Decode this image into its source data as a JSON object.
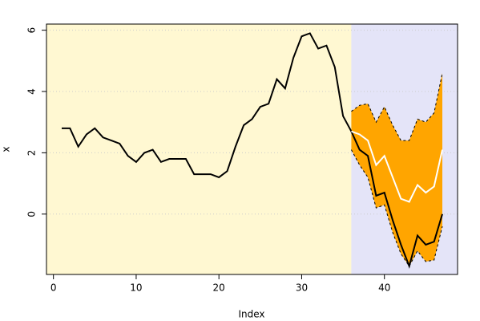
{
  "chart_data": {
    "type": "line",
    "x_label": "Index",
    "y_label": "x",
    "x": [
      1,
      2,
      3,
      4,
      5,
      6,
      7,
      8,
      9,
      10,
      11,
      12,
      13,
      14,
      15,
      16,
      17,
      18,
      19,
      20,
      21,
      22,
      23,
      24,
      25,
      26,
      27,
      28,
      29,
      30,
      31,
      32,
      33,
      34,
      35,
      36,
      37,
      38,
      39,
      40,
      41,
      42,
      43,
      44,
      45,
      46,
      47
    ],
    "xlim": [
      -0.84,
      48.84
    ],
    "xticks": [
      0,
      10,
      20,
      30,
      40
    ],
    "ylim": [
      -1.97,
      6.2
    ],
    "yticks": [
      0,
      2,
      4,
      6
    ],
    "grid": true,
    "forecast_start": 36,
    "series": [
      {
        "color": "#000000",
        "values": [
          2.8,
          2.8,
          2.2,
          2.6,
          2.8,
          2.5,
          2.4,
          2.3,
          1.9,
          1.7,
          2.0,
          2.1,
          1.7,
          1.8,
          1.8,
          1.8,
          1.3,
          1.3,
          1.3,
          1.2,
          1.4,
          2.2,
          2.9,
          3.1,
          3.5,
          3.6,
          4.4,
          4.1,
          5.1,
          5.8,
          5.9,
          5.4,
          5.5,
          4.8,
          3.2,
          2.7,
          2.1,
          1.9,
          0.6,
          0.7,
          -0.2,
          -1.0,
          -1.7,
          -0.7,
          -1.0,
          -0.9,
          0.0
        ]
      },
      {
        "color": "#ffffff",
        "values": [
          null,
          null,
          null,
          null,
          null,
          null,
          null,
          null,
          null,
          null,
          null,
          null,
          null,
          null,
          null,
          null,
          null,
          null,
          null,
          null,
          null,
          null,
          null,
          null,
          null,
          null,
          null,
          null,
          null,
          null,
          null,
          null,
          null,
          null,
          null,
          2.7,
          2.6,
          2.4,
          1.6,
          1.9,
          1.2,
          0.5,
          0.4,
          0.95,
          0.7,
          0.9,
          2.1
        ]
      },
      {
        "color": "#000000",
        "values": [
          null,
          null,
          null,
          null,
          null,
          null,
          null,
          null,
          null,
          null,
          null,
          null,
          null,
          null,
          null,
          null,
          null,
          null,
          null,
          null,
          null,
          null,
          null,
          null,
          null,
          null,
          null,
          null,
          null,
          null,
          null,
          null,
          null,
          null,
          null,
          3.35,
          3.55,
          3.6,
          3.0,
          3.5,
          2.9,
          2.4,
          2.4,
          3.1,
          3.0,
          3.3,
          4.6
        ]
      },
      {
        "color": "#000000",
        "values": [
          null,
          null,
          null,
          null,
          null,
          null,
          null,
          null,
          null,
          null,
          null,
          null,
          null,
          null,
          null,
          null,
          null,
          null,
          null,
          null,
          null,
          null,
          null,
          null,
          null,
          null,
          null,
          null,
          null,
          null,
          null,
          null,
          null,
          null,
          null,
          2.1,
          1.6,
          1.2,
          0.2,
          0.3,
          -0.6,
          -1.3,
          -1.7,
          -1.2,
          -1.55,
          -1.5,
          -0.4
        ]
      }
    ],
    "band_color": "#ffa500",
    "history_color": "#fff8d2",
    "forecast_color": "#e4e4f8"
  }
}
